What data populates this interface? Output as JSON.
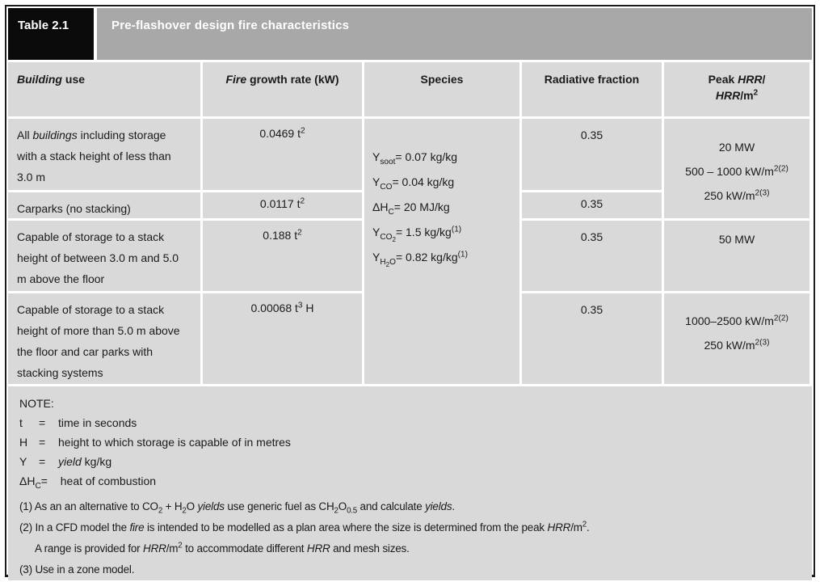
{
  "title_bar": {
    "tab_label": "Table 2.1",
    "title": "Pre-flashover design fire characteristics"
  },
  "colors": {
    "tab_bg": "#0a0a0a",
    "title_bar_bg": "#a8a8a8",
    "cell_bg": "#d9d9d9",
    "border": "#1c1c1c",
    "title_text": "#ffffff",
    "body_text": "#1a1a1a"
  },
  "table": {
    "columns": [
      "<i>Building</i> use",
      "<i>Fire</i> growth rate (kW)",
      "Species",
      "Radiative fraction",
      "Peak <i>HRR</i>/<br><i>HRR</i>/m<sup>2</sup>"
    ],
    "rows": [
      {
        "building_use": "All <i>buildings</i> including storage with a stack height of less than 3.0 m",
        "fire_growth_rate": "0.0469 t<sup>2</sup>",
        "radiative_fraction": "0.35"
      },
      {
        "building_use": "Carparks (no stacking)",
        "fire_growth_rate": "0.0117 t<sup>2</sup>",
        "radiative_fraction": "0.35"
      },
      {
        "building_use": "Capable of storage to a stack height of between 3.0 m and 5.0 m above the floor",
        "fire_growth_rate": "0.188 t<sup>2</sup>",
        "radiative_fraction": "0.35"
      },
      {
        "building_use": "Capable of storage to a stack height of more than 5.0 m above the floor and car parks with stacking systems",
        "fire_growth_rate": "0.00068 t<sup>3</sup> H",
        "radiative_fraction": "0.35"
      }
    ],
    "species_lines": [
      "Y<sub>soot</sub>= 0.07 kg/kg",
      "Y<sub>CO</sub>= 0.04 kg/kg",
      "ΔH<sub>C</sub>= 20 MJ/kg",
      "Y<sub>CO<sub>2</sub></sub>= 1.5 kg/kg<sup>(1)</sup>",
      "Y<sub>H<sub>2</sub>O</sub>= 0.82 kg/kg<sup>(1)</sup>"
    ],
    "peak_hrr": {
      "cell_rows_1_2": [
        "20 MW",
        "500 – 1000 kW/m<sup>2(2)</sup>",
        "250 kW/m<sup>2(3)</sup>"
      ],
      "cell_row_3": [
        "50 MW"
      ],
      "cell_row_4": [
        "1000–2500 kW/m<sup>2(2)</sup>",
        "250 kW/m<sup>2(3)</sup>"
      ]
    }
  },
  "note": {
    "label": "NOTE:",
    "definitions": [
      {
        "sym": "t",
        "eq": "=",
        "desc": "time in seconds"
      },
      {
        "sym": "H",
        "eq": "=",
        "desc": "height to which storage is capable of in metres"
      },
      {
        "sym": "Y",
        "eq": "=",
        "desc": "<i>yield</i> kg/kg"
      },
      {
        "sym": "ΔH<sub>C</sub>",
        "eq": "=",
        "desc": "heat of combustion"
      }
    ],
    "footnotes": [
      {
        "text": "(1) As an an alternative to CO<sub>2</sub> + H<sub>2</sub>O <i>yields</i> use generic fuel as CH<sub>2</sub>O<sub>0.5</sub> and calculate <i>yields</i>."
      },
      {
        "text": "(2) In a CFD model the <i>fire</i> is intended to be modelled as a plan area where the size is determined from the peak <i>HRR</i>/m<sup>2</sup>."
      },
      {
        "text": "A range is provided for <i>HRR</i>/m<sup>2</sup> to accommodate different <i>HRR</i> and mesh sizes.",
        "indent": true
      },
      {
        "text": "(3) Use in a zone model."
      }
    ]
  }
}
